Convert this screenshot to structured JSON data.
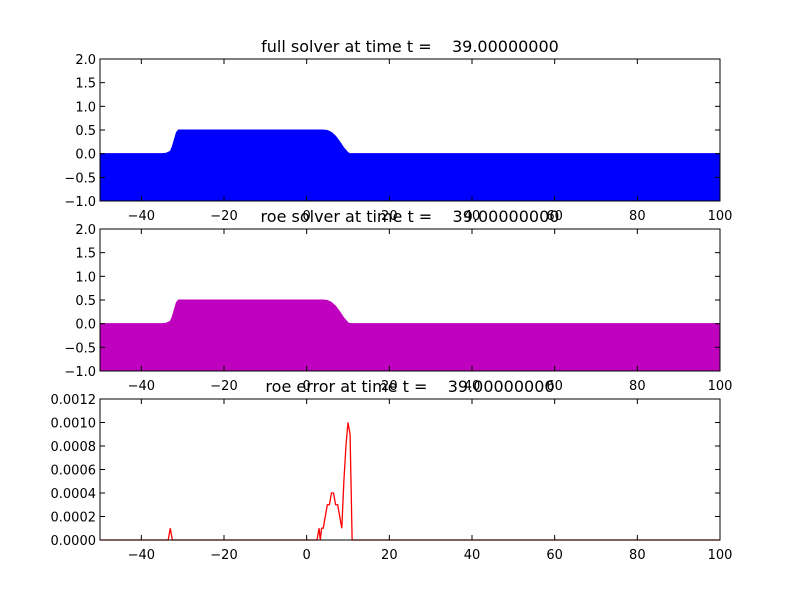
{
  "chart_data": [
    {
      "type": "area",
      "title": "full solver at time t =    39.00000000",
      "x": [
        -50,
        -35,
        -34,
        -33,
        -32.5,
        -32,
        -31.5,
        -31,
        -30,
        -20,
        -10,
        0,
        2,
        4,
        5,
        6,
        7,
        8,
        9,
        10,
        10.5,
        20,
        40,
        60,
        80,
        100
      ],
      "series": [
        {
          "color": "#0000ff",
          "values": [
            0,
            0,
            0.01,
            0.05,
            0.15,
            0.3,
            0.45,
            0.5,
            0.5,
            0.5,
            0.5,
            0.5,
            0.5,
            0.5,
            0.49,
            0.45,
            0.37,
            0.25,
            0.12,
            0.02,
            0,
            0,
            0,
            0,
            0,
            0
          ]
        }
      ],
      "xlim": [
        -50,
        100
      ],
      "ylim": [
        -1,
        2
      ],
      "xticks": [
        {
          "value": -40,
          "label": "−40"
        },
        {
          "value": -20,
          "label": "−20"
        },
        0,
        20,
        40,
        60,
        80,
        100
      ],
      "yticks": [
        {
          "value": -1,
          "label": "−1.0"
        },
        {
          "value": -0.5,
          "label": "−0.5"
        },
        {
          "value": 0,
          "label": "0.0"
        },
        {
          "value": 0.5,
          "label": "0.5"
        },
        {
          "value": 1,
          "label": "1.0"
        },
        {
          "value": 1.5,
          "label": "1.5"
        },
        {
          "value": 2,
          "label": "2.0"
        }
      ]
    },
    {
      "type": "area",
      "title": "roe solver at time t =    39.00000000",
      "x": [
        -50,
        -35,
        -34,
        -33,
        -32.5,
        -32,
        -31.5,
        -31,
        -30,
        -20,
        -10,
        0,
        2,
        4,
        5,
        6,
        7,
        8,
        9,
        10,
        10.5,
        20,
        40,
        60,
        80,
        100
      ],
      "series": [
        {
          "color": "#bf00bf",
          "values": [
            0,
            0,
            0.01,
            0.05,
            0.15,
            0.3,
            0.45,
            0.5,
            0.5,
            0.5,
            0.5,
            0.5,
            0.5,
            0.5,
            0.49,
            0.45,
            0.37,
            0.25,
            0.12,
            0.02,
            0,
            0,
            0,
            0,
            0,
            0
          ]
        }
      ],
      "xlim": [
        -50,
        100
      ],
      "ylim": [
        -1,
        2
      ],
      "xticks": [
        {
          "value": -40,
          "label": "−40"
        },
        {
          "value": -20,
          "label": "−20"
        },
        0,
        20,
        40,
        60,
        80,
        100
      ],
      "yticks": [
        {
          "value": -1,
          "label": "−1.0"
        },
        {
          "value": -0.5,
          "label": "−0.5"
        },
        {
          "value": 0,
          "label": "0.0"
        },
        {
          "value": 0.5,
          "label": "0.5"
        },
        {
          "value": 1,
          "label": "1.0"
        },
        {
          "value": 1.5,
          "label": "1.5"
        },
        {
          "value": 2,
          "label": "2.0"
        }
      ]
    },
    {
      "type": "line",
      "title": "roe error at time t =    39.00000000",
      "x": [
        -50,
        -33.5,
        -33,
        -32.5,
        2.5,
        3,
        3.3,
        3.6,
        4,
        4.5,
        5,
        5.5,
        6,
        6.5,
        7,
        7.5,
        8,
        8.5,
        9,
        9.5,
        10,
        10.5,
        11,
        100
      ],
      "series": [
        {
          "color": "#ff0000",
          "values": [
            0,
            0,
            0.0001,
            0,
            0,
            0.0001,
            0,
            0.0001,
            0.0001,
            0.0002,
            0.0003,
            0.0003,
            0.0004,
            0.0004,
            0.0003,
            0.0003,
            0.0002,
            0.0001,
            0.0005,
            0.0008,
            0.001,
            0.0009,
            0,
            0
          ]
        }
      ],
      "xlim": [
        -50,
        100
      ],
      "ylim": [
        0,
        0.0012
      ],
      "xticks": [
        {
          "value": -40,
          "label": "−40"
        },
        {
          "value": -20,
          "label": "−20"
        },
        0,
        20,
        40,
        60,
        80,
        100
      ],
      "yticks": [
        {
          "value": 0,
          "label": "0.0000"
        },
        {
          "value": 0.0002,
          "label": "0.0002"
        },
        {
          "value": 0.0004,
          "label": "0.0004"
        },
        {
          "value": 0.0006,
          "label": "0.0006"
        },
        {
          "value": 0.0008,
          "label": "0.0008"
        },
        {
          "value": 0.001,
          "label": "0.0010"
        },
        {
          "value": 0.0012,
          "label": "0.0012"
        }
      ]
    }
  ]
}
